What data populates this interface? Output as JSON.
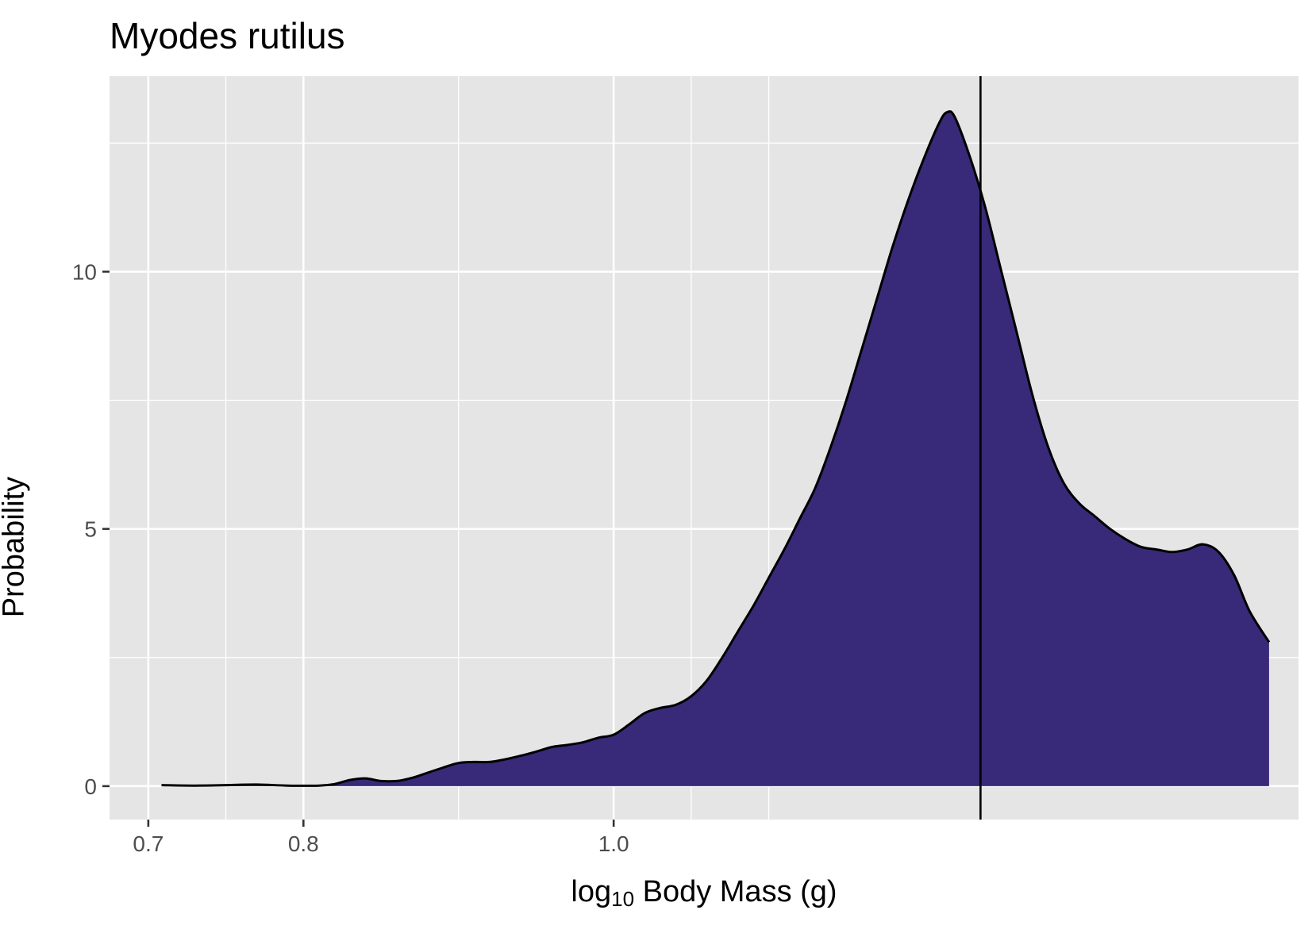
{
  "chart_data": {
    "type": "area",
    "title": "Myodes rutilus",
    "xlabel_prefix": "log",
    "xlabel_sub": "10",
    "xlabel_rest": " Body Mass (g)",
    "ylabel": "Probability",
    "xlim": [
      0.675,
      1.4415
    ],
    "ylim": [
      -0.65,
      13.8
    ],
    "x_ticks": [
      0.7,
      0.8,
      1.0
    ],
    "x_tick_labels": [
      "0.7",
      "0.8",
      "1.0"
    ],
    "x_minor_gridlines": [
      0.75,
      0.9,
      1.05,
      1.1
    ],
    "y_ticks": [
      0,
      5,
      10
    ],
    "y_tick_labels": [
      "0",
      "5",
      "10"
    ],
    "y_minor_gridlines": [
      2.5,
      7.5,
      12.5
    ],
    "reference_line_x": 1.2365,
    "fill_color": "#382a78",
    "panel_background": "#e5e5e5",
    "series": [
      {
        "x": [
          0.7085,
          0.73,
          0.75,
          0.77,
          0.79,
          0.81,
          0.82,
          0.83,
          0.84,
          0.85,
          0.86,
          0.87,
          0.88,
          0.89,
          0.9,
          0.91,
          0.92,
          0.93,
          0.94,
          0.95,
          0.96,
          0.97,
          0.98,
          0.99,
          1.0,
          1.01,
          1.02,
          1.03,
          1.04,
          1.05,
          1.06,
          1.07,
          1.08,
          1.09,
          1.1,
          1.11,
          1.12,
          1.13,
          1.14,
          1.15,
          1.16,
          1.17,
          1.18,
          1.19,
          1.2,
          1.21,
          1.215,
          1.22,
          1.23,
          1.24,
          1.25,
          1.26,
          1.27,
          1.28,
          1.29,
          1.3,
          1.31,
          1.32,
          1.33,
          1.34,
          1.35,
          1.36,
          1.37,
          1.38,
          1.39,
          1.4,
          1.41,
          1.4225
        ],
        "y": [
          0.02,
          0.01,
          0.02,
          0.03,
          0.01,
          0.01,
          0.04,
          0.12,
          0.15,
          0.1,
          0.1,
          0.16,
          0.26,
          0.36,
          0.45,
          0.47,
          0.47,
          0.52,
          0.59,
          0.67,
          0.76,
          0.8,
          0.85,
          0.94,
          1.0,
          1.2,
          1.42,
          1.52,
          1.58,
          1.75,
          2.05,
          2.5,
          3.0,
          3.5,
          4.05,
          4.6,
          5.2,
          5.8,
          6.6,
          7.5,
          8.5,
          9.5,
          10.5,
          11.4,
          12.2,
          12.9,
          13.1,
          13.0,
          12.2,
          11.2,
          10.0,
          8.8,
          7.6,
          6.6,
          5.9,
          5.5,
          5.25,
          5.0,
          4.8,
          4.65,
          4.6,
          4.55,
          4.6,
          4.7,
          4.55,
          4.1,
          3.4,
          2.8
        ]
      }
    ]
  }
}
